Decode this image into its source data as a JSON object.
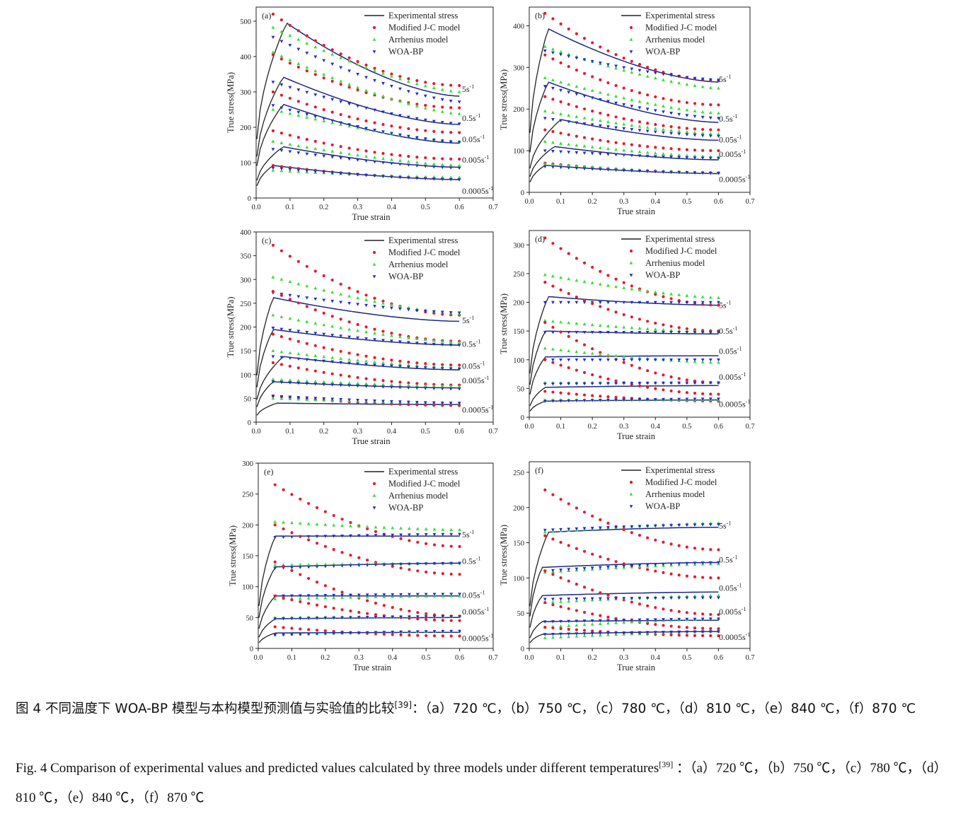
{
  "legend": [
    {
      "key": "exp",
      "label": "Experimental stress",
      "color": "#222222",
      "marker": "line"
    },
    {
      "key": "jc",
      "label": "Modified J-C model",
      "color": "#e8192c",
      "marker": "circle"
    },
    {
      "key": "arr",
      "label": "Arrhenius model",
      "color": "#33e033",
      "marker": "triangle-up"
    },
    {
      "key": "woa",
      "label": "WOA-BP",
      "color": "#1f2cd6",
      "marker": "triangle-down"
    }
  ],
  "caption": {
    "cn_text": "图 4  不同温度下 WOA-BP 模型与本构模型预测值与实验值的比较",
    "cn_ref": "[39]",
    "cn_panels": "：（a）720 ℃，（b）750 ℃，（c）780 ℃，（d）810 ℃，（e）840 ℃，（f）870 ℃",
    "en_text": "Fig. 4 Comparison of experimental values and predicted values calculated by three models under different temperatures",
    "en_ref": "[39]",
    "en_panels": " ：（a）720 ℃，（b）750 ℃，（c）780 ℃，（d）810 ℃，（e）840 ℃，（f）870 ℃"
  },
  "chart_data": [
    {
      "type": "line",
      "panel": "(a)",
      "xlabel": "True strain",
      "ylabel": "True stress(MPa)",
      "xlim": [
        0,
        0.7
      ],
      "ylim": [
        0,
        540
      ],
      "xticks": [
        0.0,
        0.1,
        0.2,
        0.3,
        0.4,
        0.5,
        0.6,
        0.7
      ],
      "yticks": [
        0,
        100,
        200,
        300,
        400,
        500
      ],
      "series": [
        {
          "rate": "5s",
          "rate_label_y": 300,
          "exp": {
            "peak": 495,
            "peak_x": 0.09,
            "end": 288
          },
          "jc": {
            "start": 520,
            "end": 318
          },
          "arr": {
            "start": 482,
            "end": 300
          },
          "woa": {
            "start": 455,
            "end": 272
          }
        },
        {
          "rate": "0.5s",
          "rate_label_y": 218,
          "exp": {
            "peak": 342,
            "peak_x": 0.08,
            "end": 208
          },
          "jc": {
            "start": 405,
            "end": 255
          },
          "arr": {
            "start": 412,
            "end": 238
          },
          "woa": {
            "start": 328,
            "end": 210
          }
        },
        {
          "rate": "0.05s",
          "rate_label_y": 158,
          "exp": {
            "peak": 265,
            "peak_x": 0.08,
            "end": 155
          },
          "jc": {
            "start": 300,
            "end": 185
          },
          "arr": {
            "start": 250,
            "end": 160
          },
          "woa": {
            "start": 262,
            "end": 158
          }
        },
        {
          "rate": "0.005s",
          "rate_label_y": 100,
          "exp": {
            "peak": 145,
            "peak_x": 0.08,
            "end": 87
          },
          "jc": {
            "start": 190,
            "end": 110
          },
          "arr": {
            "start": 160,
            "end": 92
          },
          "woa": {
            "start": 138,
            "end": 85
          }
        },
        {
          "rate": "0.0005s",
          "rate_label_y": 12,
          "exp": {
            "peak": 92,
            "peak_x": 0.05,
            "end": 52
          },
          "jc": {
            "start": 92,
            "end": 55
          },
          "arr": {
            "start": 78,
            "end": 58
          },
          "woa": {
            "start": 85,
            "end": 52
          }
        }
      ]
    },
    {
      "type": "line",
      "panel": "(b)",
      "xlabel": "True strain",
      "ylabel": "True stress(MPa)",
      "xlim": [
        0,
        0.7
      ],
      "ylim": [
        0,
        445
      ],
      "xticks": [
        0.0,
        0.1,
        0.2,
        0.3,
        0.4,
        0.5,
        0.6,
        0.7
      ],
      "yticks": [
        0,
        100,
        200,
        300,
        400
      ],
      "series": [
        {
          "rate": "5s",
          "rate_label_y": 265,
          "exp": {
            "peak": 393,
            "peak_x": 0.06,
            "end": 265
          },
          "jc": {
            "start": 430,
            "end": 268
          },
          "arr": {
            "start": 350,
            "end": 250
          },
          "woa": {
            "start": 340,
            "end": 270
          }
        },
        {
          "rate": "0.5s",
          "rate_label_y": 170,
          "exp": {
            "peak": 265,
            "peak_x": 0.06,
            "end": 168
          },
          "jc": {
            "start": 330,
            "end": 210
          },
          "arr": {
            "start": 275,
            "end": 190
          },
          "woa": {
            "start": 255,
            "end": 178
          }
        },
        {
          "rate": "0.05s",
          "rate_label_y": 120,
          "exp": {
            "peak": 175,
            "peak_x": 0.1,
            "end": 125
          },
          "jc": {
            "start": 230,
            "end": 150
          },
          "arr": {
            "start": 195,
            "end": 140
          },
          "woa": {
            "start": 178,
            "end": 135
          }
        },
        {
          "rate": "0.005s",
          "rate_label_y": 85,
          "exp": {
            "peak": 110,
            "peak_x": 0.08,
            "end": 78
          },
          "jc": {
            "start": 150,
            "end": 100
          },
          "arr": {
            "start": 122,
            "end": 85
          },
          "woa": {
            "start": 100,
            "end": 82
          }
        },
        {
          "rate": "0.0005s",
          "rate_label_y": 25,
          "exp": {
            "peak": 65,
            "peak_x": 0.05,
            "end": 45
          },
          "jc": {
            "start": 70,
            "end": 47
          },
          "arr": {
            "start": 68,
            "end": 47
          },
          "woa": {
            "start": 62,
            "end": 46
          }
        }
      ]
    },
    {
      "type": "line",
      "panel": "(c)",
      "xlabel": "True strain",
      "ylabel": "True stress(MPa)",
      "xlim": [
        0,
        0.7
      ],
      "ylim": [
        0,
        400
      ],
      "xticks": [
        0.0,
        0.1,
        0.2,
        0.3,
        0.4,
        0.5,
        0.6,
        0.7
      ],
      "yticks": [
        0,
        50,
        100,
        150,
        200,
        250,
        300,
        350,
        400
      ],
      "series": [
        {
          "rate": "5s",
          "rate_label_y": 208,
          "exp": {
            "peak": 262,
            "peak_x": 0.05,
            "end": 212
          },
          "jc": {
            "start": 372,
            "end": 225
          },
          "arr": {
            "start": 305,
            "end": 228
          },
          "woa": {
            "start": 272,
            "end": 230
          }
        },
        {
          "rate": "0.5s",
          "rate_label_y": 158,
          "exp": {
            "peak": 195,
            "peak_x": 0.05,
            "end": 162
          },
          "jc": {
            "start": 275,
            "end": 170
          },
          "arr": {
            "start": 225,
            "end": 168
          },
          "woa": {
            "start": 198,
            "end": 162
          }
        },
        {
          "rate": "0.05s",
          "rate_label_y": 112,
          "exp": {
            "peak": 138,
            "peak_x": 0.08,
            "end": 110
          },
          "jc": {
            "start": 185,
            "end": 120
          },
          "arr": {
            "start": 150,
            "end": 115
          },
          "woa": {
            "start": 138,
            "end": 112
          }
        },
        {
          "rate": "0.005s",
          "rate_label_y": 82,
          "exp": {
            "peak": 85,
            "peak_x": 0.05,
            "end": 72
          },
          "jc": {
            "start": 125,
            "end": 78
          },
          "arr": {
            "start": 90,
            "end": 75
          },
          "woa": {
            "start": 85,
            "end": 70
          }
        },
        {
          "rate": "0.0005s",
          "rate_label_y": 20,
          "exp": {
            "peak": 40,
            "peak_x": 0.06,
            "end": 37
          },
          "jc": {
            "start": 55,
            "end": 35
          },
          "arr": {
            "start": 50,
            "end": 40
          },
          "woa": {
            "start": 55,
            "end": 40
          }
        }
      ]
    },
    {
      "type": "line",
      "panel": "(d)",
      "xlabel": "True strain",
      "ylabel": "True stress(MPa)",
      "xlim": [
        0,
        0.7
      ],
      "ylim": [
        0,
        325
      ],
      "xticks": [
        0.0,
        0.1,
        0.2,
        0.3,
        0.4,
        0.5,
        0.6,
        0.7
      ],
      "yticks": [
        0,
        50,
        100,
        150,
        200,
        250,
        300
      ],
      "series": [
        {
          "rate": "5s",
          "rate_label_y": 190,
          "exp": {
            "peak": 210,
            "peak_x": 0.06,
            "end": 195
          },
          "jc": {
            "start": 312,
            "end": 195
          },
          "arr": {
            "start": 248,
            "end": 208
          },
          "woa": {
            "start": 200,
            "end": 200
          }
        },
        {
          "rate": "0.5s",
          "rate_label_y": 145,
          "exp": {
            "peak": 150,
            "peak_x": 0.05,
            "end": 145
          },
          "jc": {
            "start": 235,
            "end": 150
          },
          "arr": {
            "start": 168,
            "end": 148
          },
          "woa": {
            "start": 148,
            "end": 148
          }
        },
        {
          "rate": "0.05s",
          "rate_label_y": 110,
          "exp": {
            "peak": 105,
            "peak_x": 0.05,
            "end": 107
          },
          "jc": {
            "start": 165,
            "end": 60
          },
          "arr": {
            "start": 120,
            "end": 95
          },
          "woa": {
            "start": 100,
            "end": 100
          }
        },
        {
          "rate": "0.005s",
          "rate_label_y": 65,
          "exp": {
            "peak": 52,
            "peak_x": 0.05,
            "end": 55
          },
          "jc": {
            "start": 100,
            "end": 40
          },
          "arr": {
            "start": 60,
            "end": 60
          },
          "woa": {
            "start": 58,
            "end": 60
          }
        },
        {
          "rate": "0.0005s",
          "rate_label_y": 18,
          "exp": {
            "peak": 28,
            "peak_x": 0.05,
            "end": 30
          },
          "jc": {
            "start": 45,
            "end": 28
          },
          "arr": {
            "start": 30,
            "end": 30
          },
          "woa": {
            "start": 28,
            "end": 32
          }
        }
      ]
    },
    {
      "type": "line",
      "panel": "(e)",
      "xlabel": "True strain",
      "ylabel": "True stress(MPa)",
      "xlim": [
        0,
        0.7
      ],
      "ylim": [
        0,
        300
      ],
      "xticks": [
        0.0,
        0.1,
        0.2,
        0.3,
        0.4,
        0.5,
        0.6,
        0.7
      ],
      "yticks": [
        0,
        50,
        100,
        150,
        200,
        250,
        300
      ],
      "series": [
        {
          "rate": "5s",
          "rate_label_y": 180,
          "exp": {
            "peak": 182,
            "peak_x": 0.05,
            "end": 182
          },
          "jc": {
            "start": 265,
            "end": 165
          },
          "arr": {
            "start": 205,
            "end": 192
          },
          "woa": {
            "start": 180,
            "end": 185
          }
        },
        {
          "rate": "0.5s",
          "rate_label_y": 137,
          "exp": {
            "peak": 132,
            "peak_x": 0.05,
            "end": 138
          },
          "jc": {
            "start": 200,
            "end": 120
          },
          "arr": {
            "start": 135,
            "end": 138
          },
          "woa": {
            "start": 130,
            "end": 138
          }
        },
        {
          "rate": "0.05s",
          "rate_label_y": 82,
          "exp": {
            "peak": 85,
            "peak_x": 0.05,
            "end": 85
          },
          "jc": {
            "start": 140,
            "end": 52
          },
          "arr": {
            "start": 80,
            "end": 85
          },
          "woa": {
            "start": 85,
            "end": 88
          }
        },
        {
          "rate": "0.005s",
          "rate_label_y": 55,
          "exp": {
            "peak": 48,
            "peak_x": 0.05,
            "end": 50
          },
          "jc": {
            "start": 85,
            "end": 45
          },
          "arr": {
            "start": 50,
            "end": 52
          },
          "woa": {
            "start": 48,
            "end": 52
          }
        },
        {
          "rate": "0.0005s",
          "rate_label_y": 12,
          "exp": {
            "peak": 25,
            "peak_x": 0.05,
            "end": 26
          },
          "jc": {
            "start": 35,
            "end": 20
          },
          "arr": {
            "start": 22,
            "end": 28
          },
          "woa": {
            "start": 22,
            "end": 28
          }
        }
      ]
    },
    {
      "type": "line",
      "panel": "(f)",
      "xlabel": "True strain",
      "ylabel": "True stress(MPa)",
      "xlim": [
        0,
        0.7
      ],
      "ylim": [
        0,
        265
      ],
      "xticks": [
        0.0,
        0.1,
        0.2,
        0.3,
        0.4,
        0.5,
        0.6,
        0.7
      ],
      "yticks": [
        0,
        50,
        100,
        150,
        200,
        250
      ],
      "series": [
        {
          "rate": "5s",
          "rate_label_y": 170,
          "exp": {
            "peak": 165,
            "peak_x": 0.06,
            "end": 172
          },
          "jc": {
            "start": 225,
            "end": 140
          },
          "arr": {
            "start": 165,
            "end": 178
          },
          "woa": {
            "start": 168,
            "end": 176
          }
        },
        {
          "rate": "0.5s",
          "rate_label_y": 122,
          "exp": {
            "peak": 115,
            "peak_x": 0.04,
            "end": 122
          },
          "jc": {
            "start": 160,
            "end": 100
          },
          "arr": {
            "start": 108,
            "end": 120
          },
          "woa": {
            "start": 110,
            "end": 122
          }
        },
        {
          "rate": "0.05s",
          "rate_label_y": 82,
          "exp": {
            "peak": 75,
            "peak_x": 0.04,
            "end": 80
          },
          "jc": {
            "start": 110,
            "end": 48
          },
          "arr": {
            "start": 65,
            "end": 75
          },
          "woa": {
            "start": 70,
            "end": 72
          }
        },
        {
          "rate": "0.005s",
          "rate_label_y": 48,
          "exp": {
            "peak": 38,
            "peak_x": 0.04,
            "end": 40
          },
          "jc": {
            "start": 65,
            "end": 28
          },
          "arr": {
            "start": 30,
            "end": 42
          },
          "woa": {
            "start": 38,
            "end": 42
          }
        },
        {
          "rate": "0.0005s",
          "rate_label_y": 12,
          "exp": {
            "peak": 20,
            "peak_x": 0.04,
            "end": 24
          },
          "jc": {
            "start": 30,
            "end": 18
          },
          "arr": {
            "start": 15,
            "end": 24
          },
          "woa": {
            "start": 20,
            "end": 24
          }
        }
      ]
    }
  ]
}
